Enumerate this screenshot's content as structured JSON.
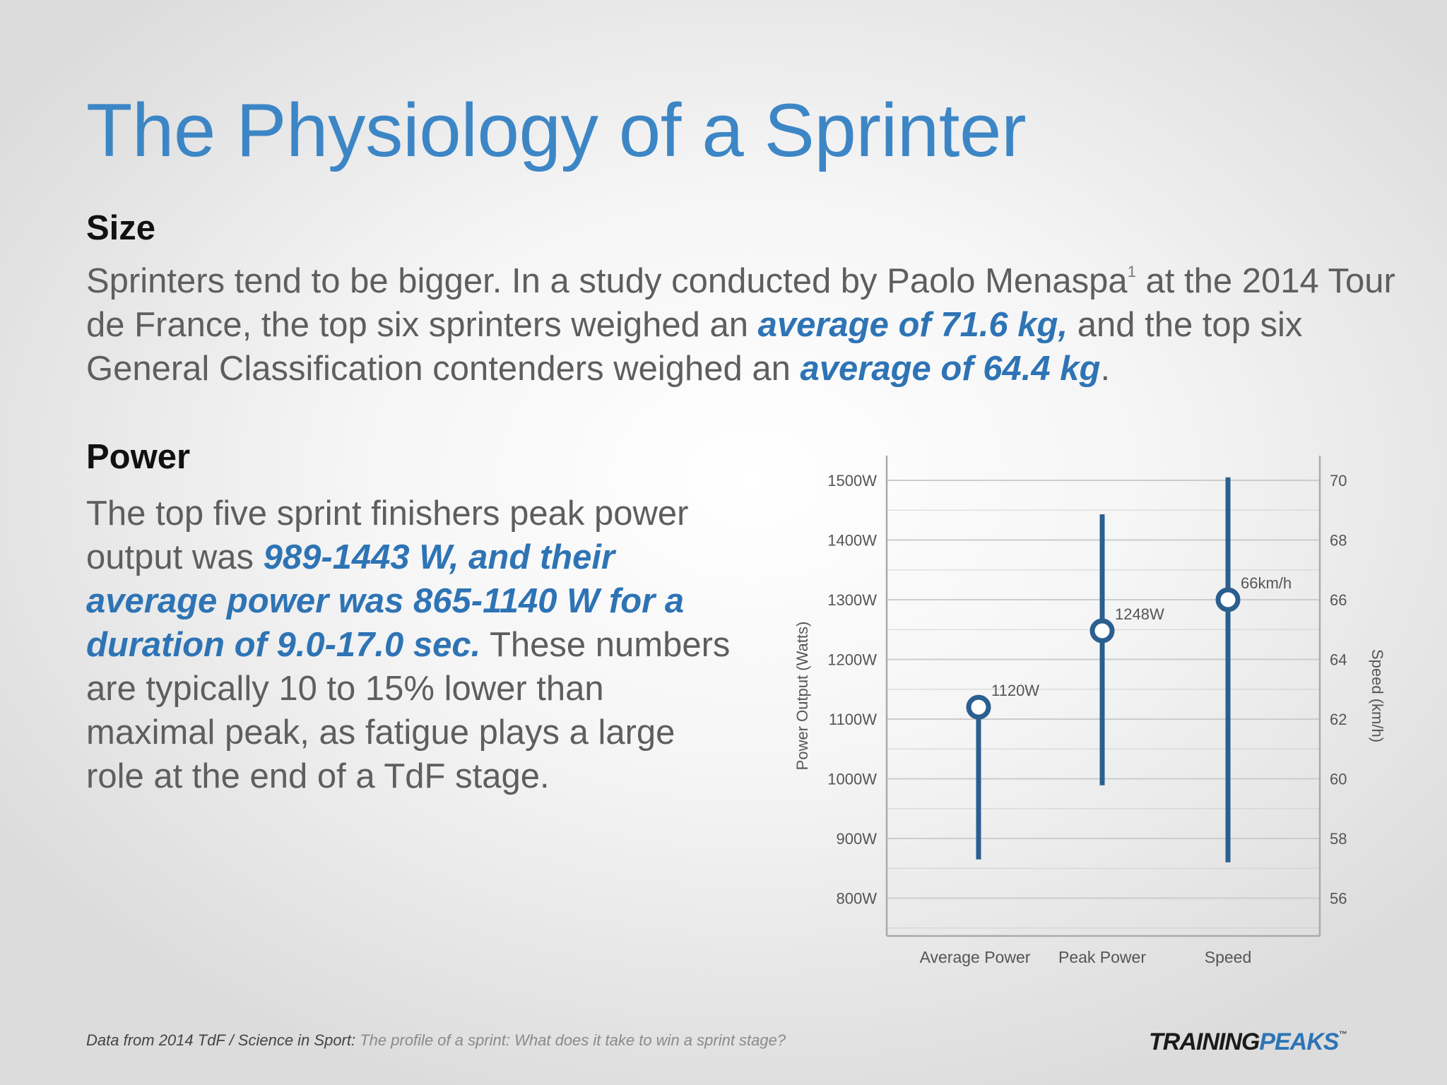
{
  "title": "The Physiology of a Sprinter",
  "size_section": {
    "heading": "Size",
    "text_1": "Sprinters tend to be bigger. In a study conducted by Paolo Menaspa",
    "footnote_mark": "1",
    "text_2": " at the 2014 Tour de France, the top six sprinters weighed an ",
    "highlight_1": "average of 71.6 kg,",
    "text_3": " and the top six General Classification contenders weighed an ",
    "highlight_2": "average of 64.4 kg",
    "text_4": "."
  },
  "power_section": {
    "heading": "Power",
    "text_1": "The top five sprint finishers peak power output was ",
    "highlight": "989-1443 W, and their average power was 865-1140 W for a duration of 9.0-17.0 sec.",
    "text_2": " These numbers are typically 10 to 15% lower than maximal peak, as fatigue plays a large role at the end of a TdF stage."
  },
  "chart_data": {
    "type": "range",
    "categories": [
      "Average Power",
      "Peak Power",
      "Speed"
    ],
    "series": [
      {
        "category": "Average Power",
        "axis": "left",
        "min": 865,
        "max": 1140,
        "value": 1120,
        "label": "1120W"
      },
      {
        "category": "Peak Power",
        "axis": "left",
        "min": 989,
        "max": 1443,
        "value": 1248,
        "label": "1248W"
      },
      {
        "category": "Speed",
        "axis": "right",
        "min": 57.2,
        "max": 70.1,
        "value": 66,
        "label": "66km/h"
      }
    ],
    "left_axis": {
      "label": "Power Output (Watts)",
      "ticks": [
        800,
        900,
        1000,
        1100,
        1200,
        1300,
        1400,
        1500
      ],
      "tick_labels": [
        "800W",
        "900W",
        "1000W",
        "1100W",
        "1200W",
        "1300W",
        "1400W",
        "1500W"
      ],
      "range": [
        740,
        1540
      ]
    },
    "right_axis": {
      "label": "Speed (km/h)",
      "ticks": [
        56,
        58,
        60,
        62,
        64,
        66,
        68,
        70
      ],
      "tick_labels": [
        "56",
        "58",
        "60",
        "62",
        "64",
        "66",
        "68",
        "70"
      ]
    },
    "grid": true,
    "colors": {
      "series": "#2a5f8f",
      "grid": "#cccccc",
      "axis": "#aaaaaa"
    }
  },
  "footnote": {
    "source": "Data from 2014 TdF / Science in Sport: ",
    "title": "The profile of a sprint: What does it take to win a sprint stage?"
  },
  "logo": {
    "part1": "TRAINING",
    "part2": "PEAKS",
    "tm": "™"
  }
}
